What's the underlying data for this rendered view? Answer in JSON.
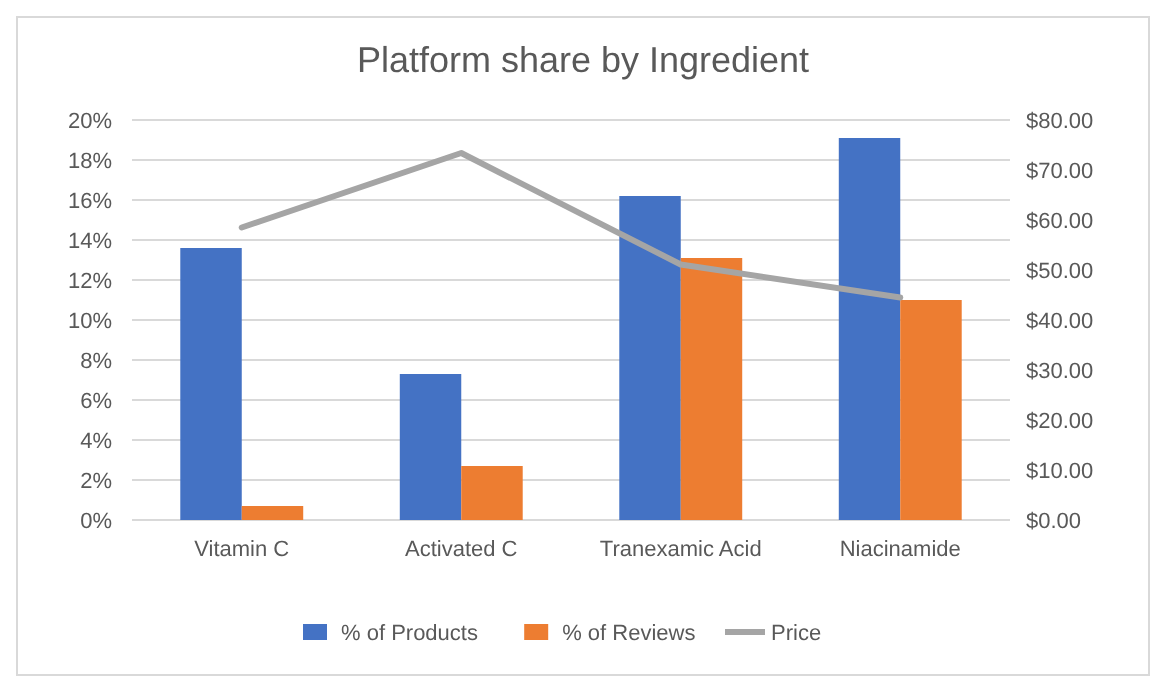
{
  "chart_data": {
    "type": "bar",
    "title": "Platform share by Ingredient",
    "categories": [
      "Vitamin C",
      "Activated C",
      "Tranexamic Acid",
      "Niacinamide"
    ],
    "series": [
      {
        "name": "% of Products",
        "color": "#4472c4",
        "values": [
          13.6,
          7.3,
          16.2,
          19.1
        ]
      },
      {
        "name": "% of Reviews",
        "color": "#ed7d31",
        "values": [
          0.7,
          2.7,
          13.1,
          11.0
        ]
      },
      {
        "name": "Price",
        "color": "#a5a5a5",
        "type": "line",
        "axis": "y2",
        "values": [
          58.5,
          73.4,
          51.1,
          44.5
        ]
      }
    ],
    "ylim": [
      0,
      20
    ],
    "yticks": [
      {
        "value": 0,
        "label": "0%"
      },
      {
        "value": 2,
        "label": "2%"
      },
      {
        "value": 4,
        "label": "4%"
      },
      {
        "value": 6,
        "label": "6%"
      },
      {
        "value": 8,
        "label": "8%"
      },
      {
        "value": 10,
        "label": "10%"
      },
      {
        "value": 12,
        "label": "12%"
      },
      {
        "value": 14,
        "label": "14%"
      },
      {
        "value": 16,
        "label": "16%"
      },
      {
        "value": 18,
        "label": "18%"
      },
      {
        "value": 20,
        "label": "20%"
      }
    ],
    "y2lim": [
      0,
      80
    ],
    "y2ticks": [
      {
        "value": 0,
        "label": "$0.00"
      },
      {
        "value": 10,
        "label": "$10.00"
      },
      {
        "value": 20,
        "label": "$20.00"
      },
      {
        "value": 30,
        "label": "$30.00"
      },
      {
        "value": 40,
        "label": "$40.00"
      },
      {
        "value": 50,
        "label": "$50.00"
      },
      {
        "value": 60,
        "label": "$60.00"
      },
      {
        "value": 70,
        "label": "$70.00"
      },
      {
        "value": 80,
        "label": "$80.00"
      }
    ],
    "grid": "y",
    "legend": "bottom",
    "marker": "none"
  }
}
